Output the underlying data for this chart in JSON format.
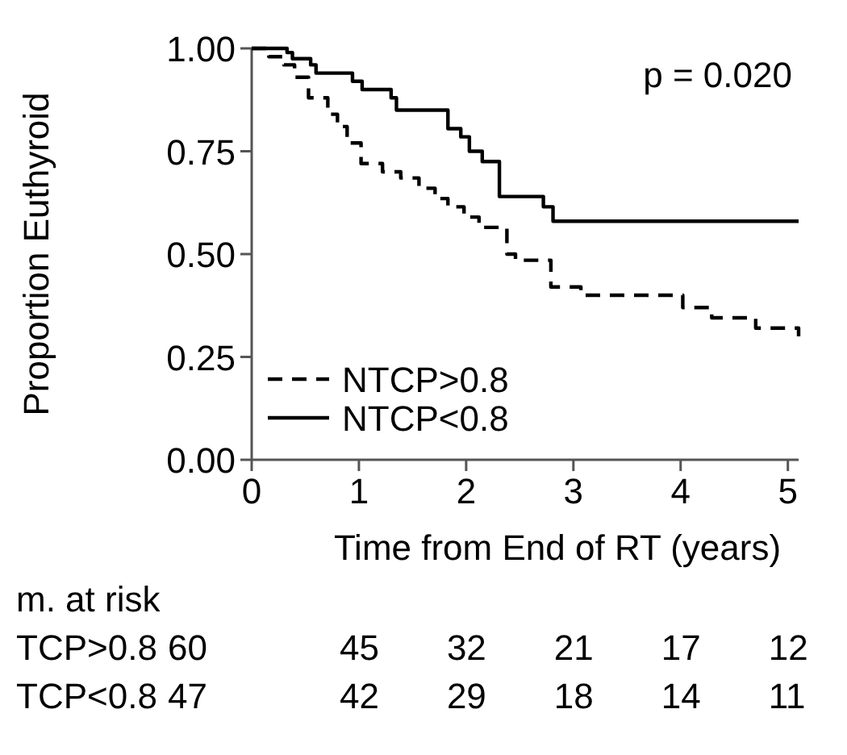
{
  "chart_data": {
    "type": "step",
    "xlabel": "Time from End of RT (years)",
    "ylabel": "Proportion Euthyroid",
    "xlim": [
      0,
      5.1
    ],
    "ylim": [
      0,
      1
    ],
    "xticks": [
      0,
      1,
      2,
      3,
      4,
      5
    ],
    "yticks": [
      {
        "value": 0,
        "label": "0.00"
      },
      {
        "value": 0.25,
        "label": "0.25"
      },
      {
        "value": 0.5,
        "label": "0.50"
      },
      {
        "value": 0.75,
        "label": "0.75"
      },
      {
        "value": 1,
        "label": "1.00"
      }
    ],
    "grid": false,
    "legend": "bottom left",
    "series": [
      {
        "name": "NTCP>0.8",
        "color": "#000000",
        "line_style": "dashed",
        "x": [
          0,
          0.16,
          0.3,
          0.4,
          0.53,
          0.71,
          0.8,
          0.89,
          1.02,
          1.22,
          1.39,
          1.56,
          1.71,
          1.83,
          1.98,
          2.12,
          2.38,
          2.46,
          2.79,
          3.07,
          4.02,
          4.29,
          4.7,
          5.1
        ],
        "values": [
          1,
          0.98,
          0.96,
          0.93,
          0.88,
          0.84,
          0.81,
          0.77,
          0.72,
          0.7,
          0.685,
          0.66,
          0.635,
          0.615,
          0.59,
          0.565,
          0.5,
          0.485,
          0.42,
          0.4,
          0.37,
          0.345,
          0.32,
          0.3
        ]
      },
      {
        "name": "NTCP<0.8",
        "color": "#000000",
        "line_style": "solid",
        "x": [
          0,
          0.33,
          0.38,
          0.55,
          0.6,
          0.94,
          1.03,
          1.3,
          1.35,
          1.83,
          1.95,
          2.03,
          2.15,
          2.31,
          2.72,
          2.81,
          5.1
        ],
        "values": [
          1,
          0.99,
          0.975,
          0.96,
          0.94,
          0.92,
          0.9,
          0.88,
          0.85,
          0.805,
          0.785,
          0.75,
          0.725,
          0.64,
          0.615,
          0.58,
          0.58
        ]
      }
    ],
    "annotations": [
      "p = 0.020",
      "m. at risk",
      "TCP>0.8 60 45 32 21 17 12",
      "TCP<0.8 47 42 29 18 14 11"
    ]
  }
}
